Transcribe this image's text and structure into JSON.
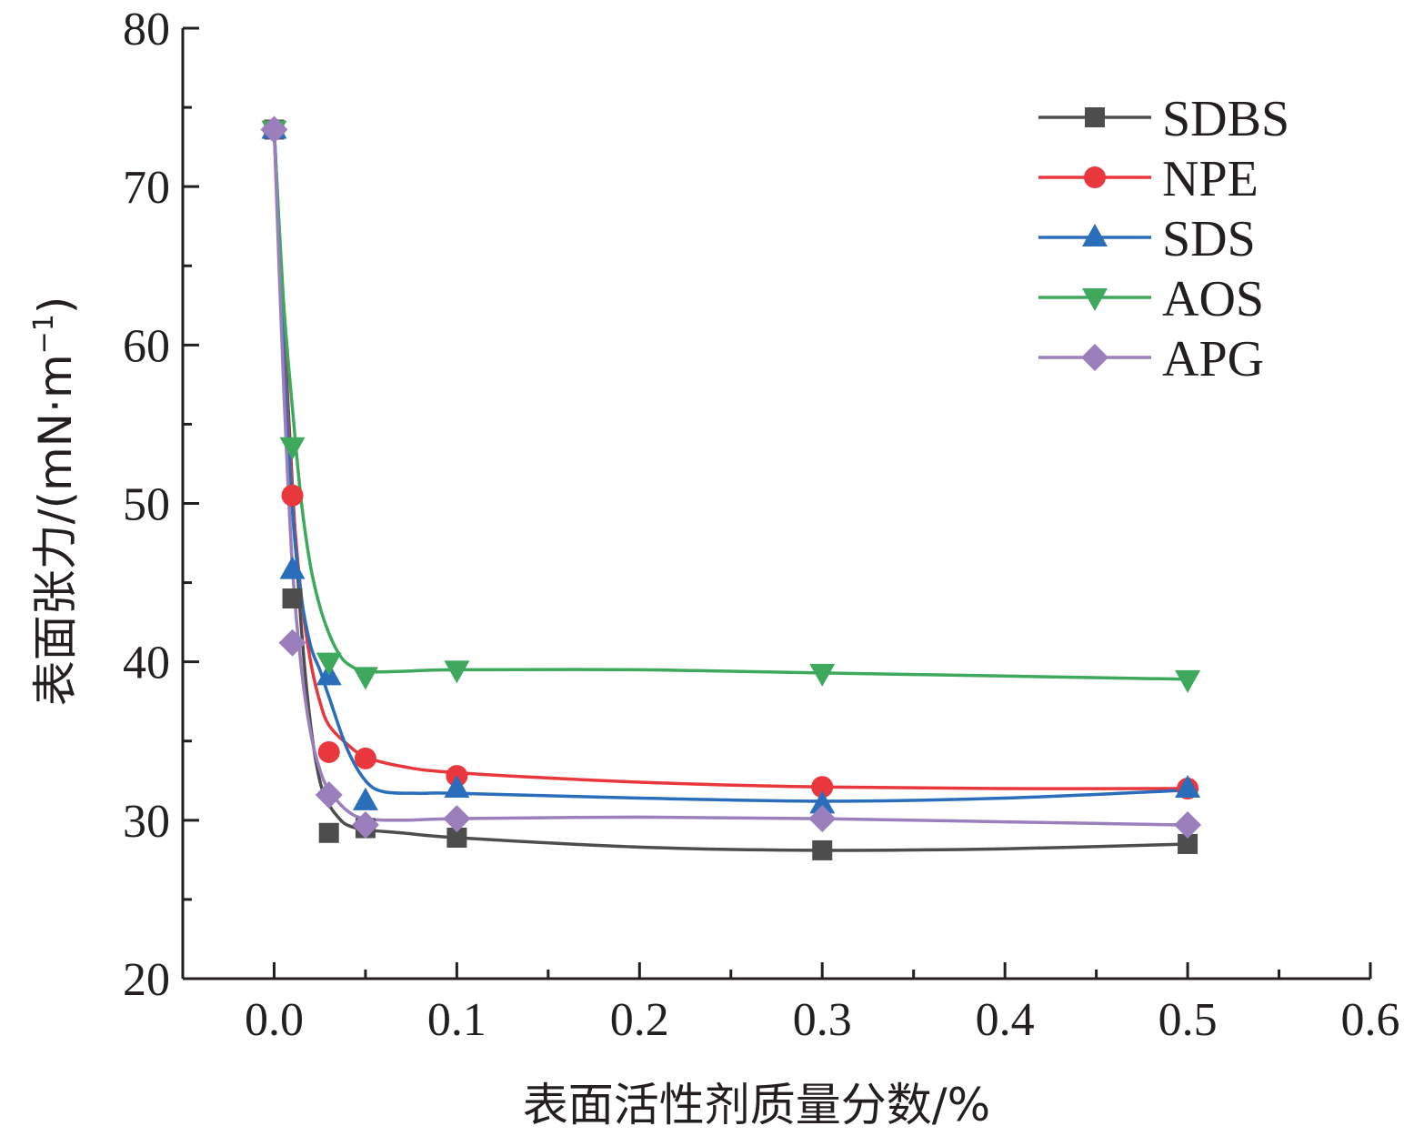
{
  "chart_data": {
    "type": "line",
    "xlabel": "表面活性剂质量分数/%",
    "ylabel_main": "表面张力/(mN·m",
    "ylabel_sup": "−1",
    "ylabel_close": ")",
    "xlim": [
      -0.05,
      0.6
    ],
    "ylim": [
      20,
      80
    ],
    "x_ticks": [
      0.0,
      0.1,
      0.2,
      0.3,
      0.4,
      0.5,
      0.6
    ],
    "x_tick_labels": [
      "0.0",
      "0.1",
      "0.2",
      "0.3",
      "0.4",
      "0.5",
      "0.6"
    ],
    "y_ticks": [
      20,
      30,
      40,
      50,
      60,
      70,
      80
    ],
    "y_tick_labels": [
      "20",
      "30",
      "40",
      "50",
      "60",
      "70",
      "80"
    ],
    "grid": false,
    "legend_position": "top-right",
    "x": [
      0.0,
      0.01,
      0.03,
      0.05,
      0.1,
      0.3,
      0.5
    ],
    "series": [
      {
        "name": "SDBS",
        "marker": "square",
        "color": "#4d4d4d",
        "values": [
          73.6,
          44.0,
          29.2,
          29.5,
          28.9,
          28.1,
          28.5
        ]
      },
      {
        "name": "NPE",
        "marker": "circle",
        "color": "#e8383d",
        "values": [
          73.6,
          50.5,
          34.3,
          33.9,
          32.8,
          32.1,
          32.0
        ]
      },
      {
        "name": "SDS",
        "marker": "triangle-up",
        "color": "#2a6ebb",
        "values": [
          73.6,
          45.8,
          39.1,
          31.2,
          32.0,
          31.0,
          32.0
        ]
      },
      {
        "name": "AOS",
        "marker": "triangle-down",
        "color": "#3ea85d",
        "values": [
          73.6,
          53.6,
          40.0,
          39.1,
          39.5,
          39.3,
          38.9
        ]
      },
      {
        "name": "APG",
        "marker": "diamond",
        "color": "#9b7fbd",
        "values": [
          73.6,
          41.2,
          31.6,
          29.7,
          30.1,
          30.1,
          29.7
        ]
      }
    ],
    "fit_curves": [
      [
        [
          0.0,
          73.6
        ],
        [
          0.005,
          62.0
        ],
        [
          0.01,
          51.0
        ],
        [
          0.015,
          42.0
        ],
        [
          0.02,
          36.0
        ],
        [
          0.025,
          32.5
        ],
        [
          0.03,
          31.0
        ],
        [
          0.035,
          30.2
        ],
        [
          0.04,
          29.7
        ],
        [
          0.05,
          29.4
        ],
        [
          0.07,
          29.2
        ],
        [
          0.1,
          28.9
        ],
        [
          0.2,
          28.3
        ],
        [
          0.3,
          28.1
        ],
        [
          0.4,
          28.2
        ],
        [
          0.5,
          28.5
        ]
      ],
      [
        [
          0.0,
          73.6
        ],
        [
          0.005,
          61.0
        ],
        [
          0.01,
          50.5
        ],
        [
          0.015,
          44.0
        ],
        [
          0.02,
          40.0
        ],
        [
          0.025,
          37.5
        ],
        [
          0.03,
          36.0
        ],
        [
          0.04,
          34.8
        ],
        [
          0.05,
          34.0
        ],
        [
          0.07,
          33.4
        ],
        [
          0.1,
          33.0
        ],
        [
          0.2,
          32.4
        ],
        [
          0.3,
          32.1
        ],
        [
          0.4,
          32.0
        ],
        [
          0.5,
          32.0
        ]
      ],
      [
        [
          0.0,
          73.6
        ],
        [
          0.005,
          60.0
        ],
        [
          0.01,
          49.5
        ],
        [
          0.015,
          44.0
        ],
        [
          0.02,
          41.0
        ],
        [
          0.025,
          39.5
        ],
        [
          0.03,
          37.8
        ],
        [
          0.04,
          34.5
        ],
        [
          0.05,
          32.5
        ],
        [
          0.06,
          31.8
        ],
        [
          0.08,
          31.7
        ],
        [
          0.1,
          31.7
        ],
        [
          0.2,
          31.4
        ],
        [
          0.3,
          31.2
        ],
        [
          0.4,
          31.4
        ],
        [
          0.5,
          31.9
        ]
      ],
      [
        [
          0.0,
          73.6
        ],
        [
          0.005,
          63.0
        ],
        [
          0.01,
          56.0
        ],
        [
          0.015,
          50.0
        ],
        [
          0.02,
          46.0
        ],
        [
          0.025,
          43.5
        ],
        [
          0.03,
          41.8
        ],
        [
          0.035,
          40.6
        ],
        [
          0.04,
          39.9
        ],
        [
          0.05,
          39.4
        ],
        [
          0.07,
          39.4
        ],
        [
          0.1,
          39.5
        ],
        [
          0.2,
          39.5
        ],
        [
          0.3,
          39.3
        ],
        [
          0.4,
          39.1
        ],
        [
          0.5,
          38.9
        ]
      ],
      [
        [
          0.0,
          73.6
        ],
        [
          0.005,
          58.0
        ],
        [
          0.01,
          46.0
        ],
        [
          0.015,
          39.5
        ],
        [
          0.02,
          35.5
        ],
        [
          0.025,
          33.2
        ],
        [
          0.03,
          31.9
        ],
        [
          0.04,
          30.6
        ],
        [
          0.05,
          30.1
        ],
        [
          0.07,
          30.0
        ],
        [
          0.1,
          30.1
        ],
        [
          0.2,
          30.2
        ],
        [
          0.3,
          30.1
        ],
        [
          0.4,
          29.9
        ],
        [
          0.5,
          29.7
        ]
      ]
    ]
  }
}
